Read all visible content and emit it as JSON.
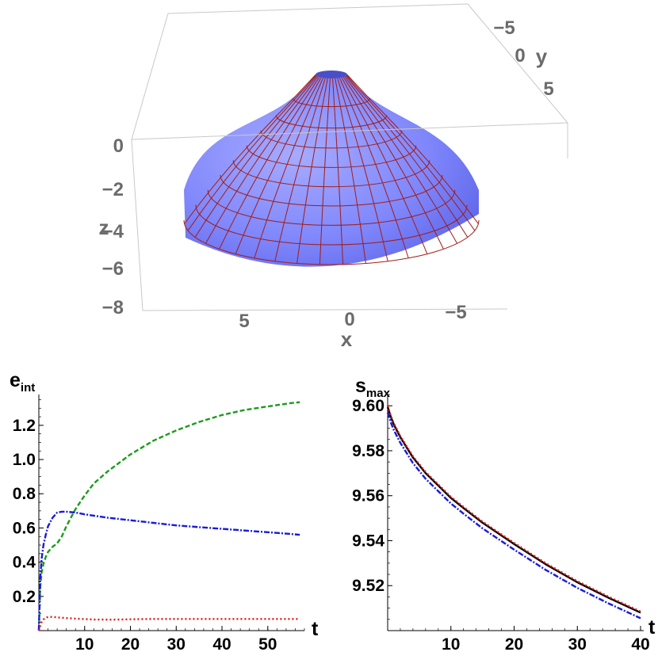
{
  "chart_data": [
    {
      "type": "surface3d",
      "x_axis": {
        "label": "x",
        "ticks": [
          5,
          0,
          -5
        ],
        "tick_labels": [
          "5",
          "0",
          "−5"
        ]
      },
      "y_axis": {
        "label": "y",
        "ticks": [
          -5,
          0,
          5
        ],
        "tick_labels": [
          "−5",
          "0",
          "5"
        ]
      },
      "z_axis": {
        "label": "z",
        "ticks": [
          0,
          -2,
          -4,
          -6,
          -8
        ],
        "tick_labels": [
          "0",
          "−2",
          "−4",
          "−6",
          "−8"
        ],
        "range": [
          -8,
          0
        ]
      },
      "surface": {
        "shape": "truncated cone (axisymmetric)",
        "apex_z": -0.3,
        "base_z": -6.8,
        "base_radius": 9.6,
        "color": "#7b82ff",
        "mesh_color": "#a01c1c"
      }
    },
    {
      "type": "line",
      "ylabel_main": "e",
      "ylabel_sub": "int",
      "xlabel": "t",
      "xlim": [
        0,
        58
      ],
      "ylim": [
        0,
        1.38
      ],
      "x_ticks": [
        10,
        20,
        30,
        40,
        50
      ],
      "y_ticks": [
        0.2,
        0.4,
        0.6,
        0.8,
        1.0,
        1.2
      ],
      "y_tick_labels": [
        "0.2",
        "0.4",
        "0.6",
        "0.8",
        "1.0",
        "1.2"
      ],
      "series": [
        {
          "color": "#1a9c1a",
          "dash": "dashed",
          "x": [
            0,
            0.3,
            0.6,
            1,
            1.5,
            2,
            3,
            4,
            5,
            6,
            7,
            8,
            10,
            12,
            15,
            20,
            25,
            30,
            35,
            40,
            45,
            50,
            55,
            57
          ],
          "y": [
            0,
            0.25,
            0.34,
            0.39,
            0.43,
            0.46,
            0.49,
            0.51,
            0.55,
            0.61,
            0.66,
            0.71,
            0.79,
            0.86,
            0.93,
            1.03,
            1.11,
            1.17,
            1.22,
            1.26,
            1.29,
            1.31,
            1.33,
            1.335
          ]
        },
        {
          "color": "#1a1adc",
          "dash": "dashdot",
          "x": [
            0,
            0.3,
            0.6,
            1,
            1.5,
            2,
            3,
            4,
            5,
            6,
            8,
            10,
            15,
            20,
            25,
            30,
            35,
            40,
            45,
            50,
            55,
            57
          ],
          "y": [
            0,
            0.3,
            0.42,
            0.5,
            0.56,
            0.61,
            0.66,
            0.69,
            0.695,
            0.695,
            0.69,
            0.68,
            0.66,
            0.645,
            0.63,
            0.615,
            0.605,
            0.595,
            0.585,
            0.575,
            0.565,
            0.56
          ]
        },
        {
          "color": "#e01818",
          "dash": "dotted",
          "x": [
            0,
            0.5,
            1,
            1.5,
            2,
            3,
            5,
            8,
            12,
            16,
            20,
            25,
            30,
            40,
            50,
            57
          ],
          "y": [
            0,
            0.045,
            0.065,
            0.075,
            0.08,
            0.08,
            0.075,
            0.07,
            0.065,
            0.064,
            0.066,
            0.068,
            0.068,
            0.068,
            0.068,
            0.068
          ]
        }
      ]
    },
    {
      "type": "line",
      "ylabel_main": "s",
      "ylabel_sub": "max",
      "xlabel": "t",
      "xlim": [
        0,
        40.5
      ],
      "ylim": [
        9.5,
        9.605
      ],
      "x_ticks": [
        10,
        20,
        30,
        40
      ],
      "y_ticks": [
        9.52,
        9.54,
        9.56,
        9.58,
        9.6
      ],
      "y_tick_labels": [
        "9.52",
        "9.54",
        "9.56",
        "9.58",
        "9.60"
      ],
      "series": [
        {
          "color": "#000000",
          "dash": "solid",
          "x": [
            0,
            0.5,
            1,
            2,
            3,
            4,
            5,
            6,
            8,
            10,
            12,
            15,
            20,
            25,
            30,
            35,
            40
          ],
          "y": [
            9.5995,
            9.595,
            9.5915,
            9.586,
            9.5815,
            9.577,
            9.5735,
            9.57,
            9.5645,
            9.559,
            9.5545,
            9.548,
            9.5385,
            9.5295,
            9.5215,
            9.5145,
            9.508
          ]
        },
        {
          "color": "#e01818",
          "dash": "dotted",
          "x": [
            0,
            0.5,
            1,
            2,
            3,
            4,
            5,
            6,
            8,
            10,
            12,
            15,
            20,
            25,
            30,
            35,
            40
          ],
          "y": [
            9.6,
            9.5955,
            9.592,
            9.5865,
            9.582,
            9.5775,
            9.574,
            9.5705,
            9.565,
            9.5595,
            9.555,
            9.5485,
            9.539,
            9.53,
            9.522,
            9.515,
            9.5085
          ]
        },
        {
          "color": "#1a1adc",
          "dash": "dashdot",
          "x": [
            0,
            0.5,
            1,
            2,
            3,
            4,
            5,
            6,
            8,
            10,
            12,
            15,
            20,
            25,
            30,
            35,
            40
          ],
          "y": [
            9.597,
            9.5925,
            9.589,
            9.5835,
            9.579,
            9.5745,
            9.571,
            9.5675,
            9.562,
            9.5565,
            9.552,
            9.5455,
            9.536,
            9.527,
            9.519,
            9.512,
            9.5055
          ]
        }
      ]
    }
  ]
}
